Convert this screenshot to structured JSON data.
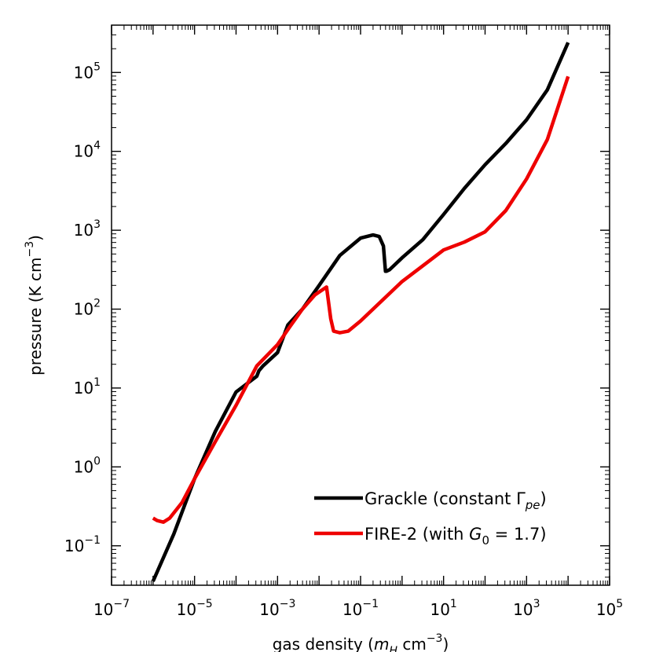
{
  "chart_data": {
    "type": "line",
    "title": "",
    "xlabel": "gas density (m_H cm^-3)",
    "ylabel": "pressure (K cm^-3)",
    "xlabel_parts": {
      "prefix": "gas density (",
      "var": "m",
      "var_sub": "H",
      "unit": " cm",
      "unit_sup": "−3",
      "suffix": ")"
    },
    "ylabel_parts": {
      "prefix": "pressure (K cm",
      "sup": "−3",
      "suffix": ")"
    },
    "xscale": "log",
    "yscale": "log",
    "xlim_log10": [
      -7,
      5
    ],
    "ylim_log10": [
      -1.5,
      5.6
    ],
    "x_ticks": [
      {
        "base": "10",
        "exp": "−7",
        "log": -7
      },
      {
        "base": "10",
        "exp": "−5",
        "log": -5
      },
      {
        "base": "10",
        "exp": "−3",
        "log": -3
      },
      {
        "base": "10",
        "exp": "−1",
        "log": -1
      },
      {
        "base": "10",
        "exp": "1",
        "log": 1
      },
      {
        "base": "10",
        "exp": "3",
        "log": 3
      },
      {
        "base": "10",
        "exp": "5",
        "log": 5
      }
    ],
    "y_ticks": [
      {
        "base": "10",
        "exp": "−1",
        "log": -1
      },
      {
        "base": "10",
        "exp": "0",
        "log": 0
      },
      {
        "base": "10",
        "exp": "1",
        "log": 1
      },
      {
        "base": "10",
        "exp": "2",
        "log": 2
      },
      {
        "base": "10",
        "exp": "3",
        "log": 3
      },
      {
        "base": "10",
        "exp": "4",
        "log": 4
      },
      {
        "base": "10",
        "exp": "5",
        "log": 5
      }
    ],
    "legend_position": "lower-right",
    "series": [
      {
        "name": "Grackle (constant Γ_pe)",
        "label_parts": {
          "text": "Grackle (constant Γ",
          "sub": "pe",
          "suffix": ")"
        },
        "color": "#000000",
        "log_x": [
          -6.0,
          -5.5,
          -5.0,
          -4.5,
          -4.0,
          -3.5,
          -3.45,
          -3.35,
          -3.0,
          -2.75,
          -2.4,
          -2.0,
          -1.5,
          -1.0,
          -0.7,
          -0.55,
          -0.45,
          -0.4,
          -0.38,
          -0.3,
          -0.2,
          0.0,
          0.5,
          1.0,
          1.5,
          2.0,
          2.5,
          3.0,
          3.5,
          4.0
        ],
        "log_y": [
          -1.45,
          -0.85,
          -0.15,
          0.45,
          0.95,
          1.15,
          1.22,
          1.28,
          1.45,
          1.8,
          2.0,
          2.3,
          2.68,
          2.9,
          2.94,
          2.92,
          2.8,
          2.48,
          2.48,
          2.5,
          2.55,
          2.65,
          2.88,
          3.2,
          3.53,
          3.83,
          4.1,
          4.4,
          4.78,
          5.38
        ]
      },
      {
        "name": "FIRE-2 (with G_0 = 1.7)",
        "label_parts": {
          "text": "FIRE-2 (with ",
          "var": "G",
          "sub": "0",
          "suffix": " = 1.7)"
        },
        "color": "#ee0000",
        "log_x": [
          -6.0,
          -5.9,
          -5.75,
          -5.6,
          -5.3,
          -5.0,
          -4.5,
          -4.0,
          -3.5,
          -3.0,
          -2.7,
          -2.4,
          -2.1,
          -1.82,
          -1.72,
          -1.65,
          -1.5,
          -1.3,
          -1.0,
          -0.5,
          0.0,
          0.5,
          1.0,
          1.5,
          2.0,
          2.5,
          3.0,
          3.5,
          4.0
        ],
        "log_y": [
          -0.65,
          -0.68,
          -0.7,
          -0.65,
          -0.45,
          -0.15,
          0.32,
          0.78,
          1.28,
          1.55,
          1.78,
          2.0,
          2.18,
          2.28,
          1.88,
          1.72,
          1.7,
          1.72,
          1.85,
          2.1,
          2.35,
          2.55,
          2.75,
          2.85,
          2.98,
          3.25,
          3.65,
          4.15,
          4.95
        ]
      }
    ]
  }
}
